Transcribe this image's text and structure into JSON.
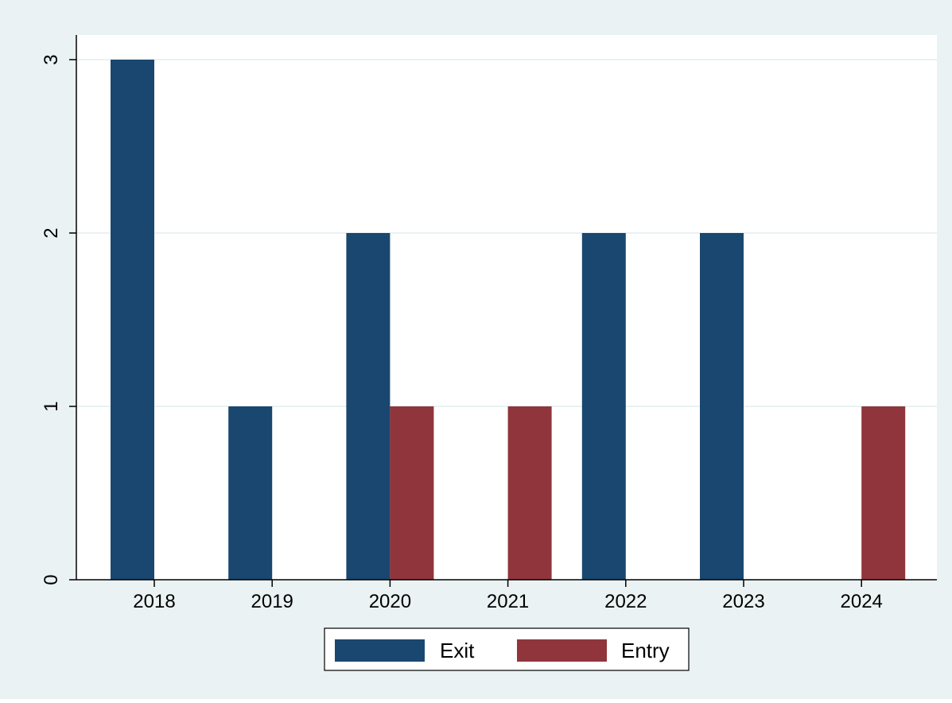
{
  "chart_data": {
    "type": "bar",
    "title": "",
    "xlabel": "",
    "ylabel": "",
    "categories": [
      "2018",
      "2019",
      "2020",
      "2021",
      "2022",
      "2023",
      "2024"
    ],
    "series": [
      {
        "name": "Exit",
        "values": [
          3,
          1,
          2,
          0,
          2,
          2,
          0
        ],
        "color": "#1a476f"
      },
      {
        "name": "Entry",
        "values": [
          0,
          0,
          1,
          1,
          0,
          0,
          1
        ],
        "color": "#90353b"
      }
    ],
    "ylim": [
      0,
      3
    ],
    "yticks": [
      "0",
      "1",
      "2",
      "3"
    ],
    "grid": true,
    "legend_position": "bottom",
    "colors": {
      "outer_background": "#eaf2f3",
      "plot_background": "#ffffff",
      "gridline": "#eaf2f3",
      "axis": "#000000"
    }
  }
}
